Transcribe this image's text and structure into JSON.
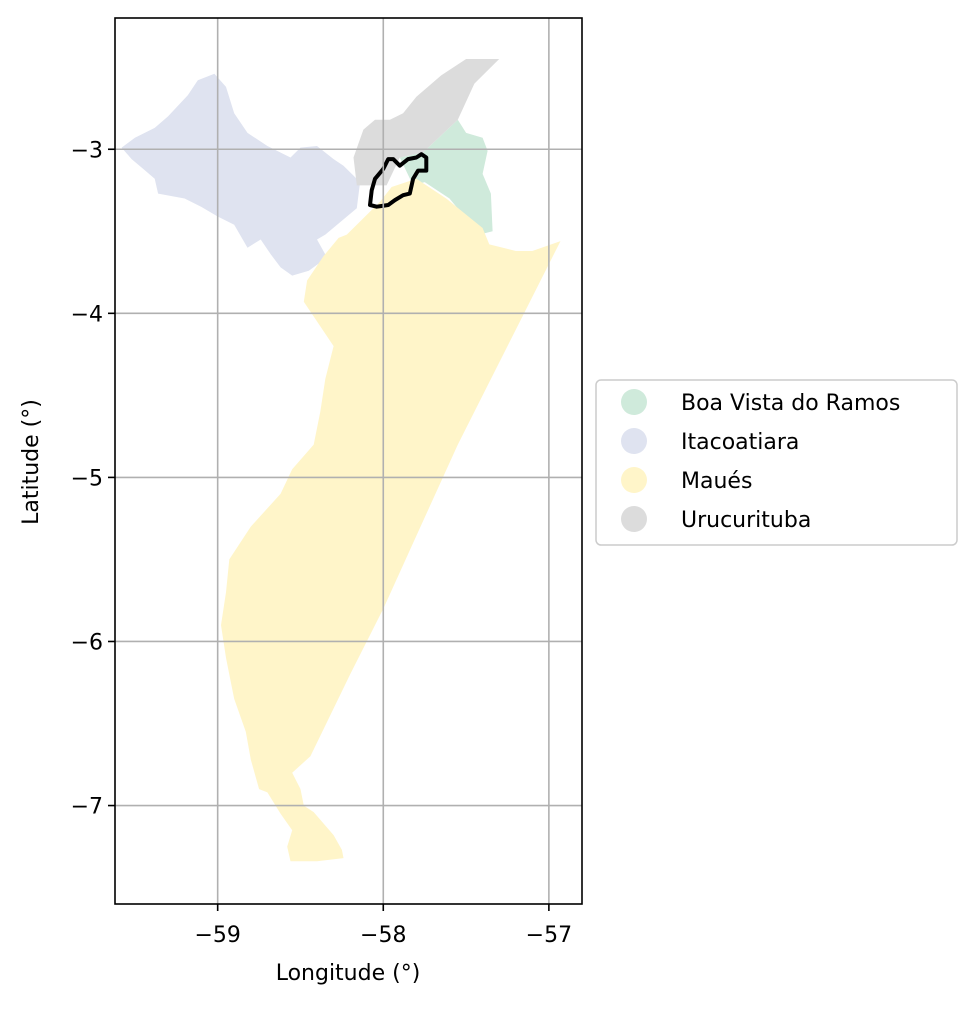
{
  "chart_data": {
    "type": "map",
    "xlabel": "Longitude (°)",
    "ylabel": "Latitude (°)",
    "xlim": [
      -59.62,
      -56.8
    ],
    "ylim": [
      -7.6,
      -2.2
    ],
    "xticks": [
      -59,
      -58,
      -57
    ],
    "yticks": [
      -3,
      -4,
      -5,
      -6,
      -7
    ],
    "xtick_labels": [
      "−59",
      "−58",
      "−57"
    ],
    "ytick_labels": [
      "−3",
      "−4",
      "−5",
      "−6",
      "−7"
    ],
    "grid": true,
    "legend_placement": "right-outside",
    "regions": [
      {
        "name": "Boa Vista do Ramos",
        "color": "#cfeadb",
        "outline": [
          [
            -57.9,
            -3.05
          ],
          [
            -57.76,
            -3.02
          ],
          [
            -57.55,
            -2.82
          ],
          [
            -57.5,
            -2.9
          ],
          [
            -57.4,
            -2.93
          ],
          [
            -57.37,
            -3.01
          ],
          [
            -57.4,
            -3.15
          ],
          [
            -57.35,
            -3.27
          ],
          [
            -57.34,
            -3.5
          ],
          [
            -57.42,
            -3.52
          ],
          [
            -57.6,
            -3.3
          ],
          [
            -57.75,
            -3.2
          ],
          [
            -57.82,
            -3.22
          ]
        ]
      },
      {
        "name": "Itacoatiara",
        "color": "#dfe3f0",
        "outline": [
          [
            -59.58,
            -2.99
          ],
          [
            -59.5,
            -2.93
          ],
          [
            -59.38,
            -2.87
          ],
          [
            -59.3,
            -2.8
          ],
          [
            -59.18,
            -2.67
          ],
          [
            -59.12,
            -2.58
          ],
          [
            -59.02,
            -2.54
          ],
          [
            -58.95,
            -2.62
          ],
          [
            -58.9,
            -2.78
          ],
          [
            -58.82,
            -2.9
          ],
          [
            -58.7,
            -2.98
          ],
          [
            -58.56,
            -3.05
          ],
          [
            -58.5,
            -2.99
          ],
          [
            -58.4,
            -2.98
          ],
          [
            -58.3,
            -3.06
          ],
          [
            -58.24,
            -3.1
          ],
          [
            -58.14,
            -3.2
          ],
          [
            -58.16,
            -3.36
          ],
          [
            -58.35,
            -3.52
          ],
          [
            -58.4,
            -3.55
          ],
          [
            -58.34,
            -3.66
          ],
          [
            -58.45,
            -3.74
          ],
          [
            -58.55,
            -3.77
          ],
          [
            -58.62,
            -3.72
          ],
          [
            -58.68,
            -3.64
          ],
          [
            -58.74,
            -3.55
          ],
          [
            -58.82,
            -3.6
          ],
          [
            -58.9,
            -3.46
          ],
          [
            -59.0,
            -3.41
          ],
          [
            -59.1,
            -3.35
          ],
          [
            -59.2,
            -3.3
          ],
          [
            -59.36,
            -3.27
          ],
          [
            -59.38,
            -3.18
          ],
          [
            -59.45,
            -3.12
          ],
          [
            -59.52,
            -3.06
          ]
        ]
      },
      {
        "name": "Maués",
        "color": "#fff5c9",
        "outline": [
          [
            -58.22,
            -3.52
          ],
          [
            -58.02,
            -3.32
          ],
          [
            -57.95,
            -3.23
          ],
          [
            -57.8,
            -3.18
          ],
          [
            -57.62,
            -3.3
          ],
          [
            -57.4,
            -3.48
          ],
          [
            -57.36,
            -3.58
          ],
          [
            -57.2,
            -3.62
          ],
          [
            -57.1,
            -3.62
          ],
          [
            -56.93,
            -3.56
          ],
          [
            -57.25,
            -4.2
          ],
          [
            -57.55,
            -4.8
          ],
          [
            -57.82,
            -5.4
          ],
          [
            -58.0,
            -5.8
          ],
          [
            -58.2,
            -6.2
          ],
          [
            -58.44,
            -6.7
          ],
          [
            -58.55,
            -6.8
          ],
          [
            -58.5,
            -6.9
          ],
          [
            -58.48,
            -7.0
          ],
          [
            -58.42,
            -7.04
          ],
          [
            -58.3,
            -7.18
          ],
          [
            -58.25,
            -7.27
          ],
          [
            -58.24,
            -7.32
          ],
          [
            -58.4,
            -7.34
          ],
          [
            -58.56,
            -7.34
          ],
          [
            -58.58,
            -7.25
          ],
          [
            -58.55,
            -7.15
          ],
          [
            -58.62,
            -7.05
          ],
          [
            -58.7,
            -6.92
          ],
          [
            -58.75,
            -6.9
          ],
          [
            -58.8,
            -6.72
          ],
          [
            -58.83,
            -6.55
          ],
          [
            -58.9,
            -6.35
          ],
          [
            -58.92,
            -6.25
          ],
          [
            -58.95,
            -6.1
          ],
          [
            -58.98,
            -5.9
          ],
          [
            -58.95,
            -5.7
          ],
          [
            -58.93,
            -5.5
          ],
          [
            -58.8,
            -5.3
          ],
          [
            -58.62,
            -5.1
          ],
          [
            -58.55,
            -4.95
          ],
          [
            -58.42,
            -4.8
          ],
          [
            -58.38,
            -4.6
          ],
          [
            -58.35,
            -4.4
          ],
          [
            -58.3,
            -4.2
          ],
          [
            -58.48,
            -3.93
          ],
          [
            -58.46,
            -3.8
          ],
          [
            -58.36,
            -3.65
          ],
          [
            -58.27,
            -3.54
          ]
        ]
      },
      {
        "name": "Urucurituba",
        "color": "#dcdcdc",
        "outline": [
          [
            -58.16,
            -3.22
          ],
          [
            -58.18,
            -3.05
          ],
          [
            -58.12,
            -2.88
          ],
          [
            -58.05,
            -2.82
          ],
          [
            -57.96,
            -2.82
          ],
          [
            -57.88,
            -2.78
          ],
          [
            -57.8,
            -2.68
          ],
          [
            -57.65,
            -2.55
          ],
          [
            -57.5,
            -2.45
          ],
          [
            -57.3,
            -2.45
          ],
          [
            -57.45,
            -2.6
          ],
          [
            -57.55,
            -2.82
          ],
          [
            -57.76,
            -3.02
          ],
          [
            -57.9,
            -3.05
          ],
          [
            -57.98,
            -3.22
          ]
        ]
      }
    ],
    "highlight_outline": [
      [
        -58.08,
        -3.34
      ],
      [
        -58.07,
        -3.25
      ],
      [
        -58.05,
        -3.18
      ],
      [
        -58.0,
        -3.12
      ],
      [
        -57.97,
        -3.06
      ],
      [
        -57.94,
        -3.06
      ],
      [
        -57.9,
        -3.1
      ],
      [
        -57.85,
        -3.06
      ],
      [
        -57.8,
        -3.05
      ],
      [
        -57.77,
        -3.03
      ],
      [
        -57.74,
        -3.05
      ],
      [
        -57.74,
        -3.13
      ],
      [
        -57.79,
        -3.13
      ],
      [
        -57.82,
        -3.18
      ],
      [
        -57.84,
        -3.27
      ],
      [
        -57.88,
        -3.28
      ],
      [
        -57.93,
        -3.31
      ],
      [
        -57.97,
        -3.34
      ],
      [
        -58.04,
        -3.35
      ]
    ]
  }
}
